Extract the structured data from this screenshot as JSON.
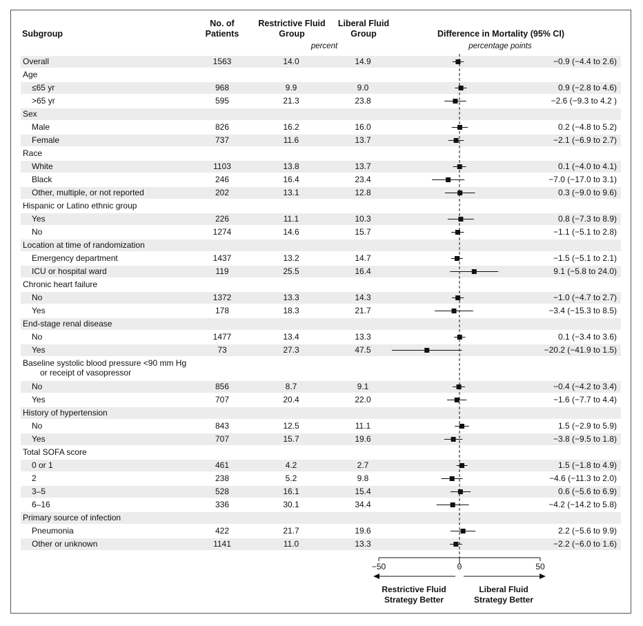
{
  "headers": {
    "subgroup": "Subgroup",
    "patients": "No. of Patients",
    "restrictive": "Restrictive Fluid Group",
    "liberal": "Liberal Fluid Group",
    "difference": "Difference in Mortality (95% CI)",
    "percent": "percent",
    "points": "percentage points"
  },
  "footer": {
    "left": "Restrictive Fluid Strategy Better",
    "right": "Liberal Fluid Strategy Better"
  },
  "chart_data": {
    "type": "forest",
    "xlim": [
      -50,
      50
    ],
    "xticks": [
      "−50",
      "0",
      "50"
    ],
    "reference_line": 0,
    "rows": [
      {
        "kind": "data",
        "label": "Overall",
        "indent": false,
        "n": "1563",
        "restrictive": "14.0",
        "liberal": "14.9",
        "ci_text": "−0.9 (−4.4 to 2.6)",
        "est": -0.9,
        "lo": -4.4,
        "hi": 2.6
      },
      {
        "kind": "cat",
        "label": "Age"
      },
      {
        "kind": "data",
        "label": "≤65 yr",
        "indent": true,
        "n": "968",
        "restrictive": "9.9",
        "liberal": "9.0",
        "ci_text": "0.9 (−2.8 to 4.6)",
        "est": 0.9,
        "lo": -2.8,
        "hi": 4.6
      },
      {
        "kind": "data",
        "label": ">65 yr",
        "indent": true,
        "n": "595",
        "restrictive": "21.3",
        "liberal": "23.8",
        "ci_text": "−2.6 (−9.3 to 4.2 )",
        "est": -2.6,
        "lo": -9.3,
        "hi": 4.2
      },
      {
        "kind": "cat",
        "label": "Sex"
      },
      {
        "kind": "data",
        "label": "Male",
        "indent": true,
        "n": "826",
        "restrictive": "16.2",
        "liberal": "16.0",
        "ci_text": "0.2 (−4.8 to 5.2)",
        "est": 0.2,
        "lo": -4.8,
        "hi": 5.2
      },
      {
        "kind": "data",
        "label": "Female",
        "indent": true,
        "n": "737",
        "restrictive": "11.6",
        "liberal": "13.7",
        "ci_text": "−2.1 (−6.9 to 2.7)",
        "est": -2.1,
        "lo": -6.9,
        "hi": 2.7
      },
      {
        "kind": "cat",
        "label": "Race"
      },
      {
        "kind": "data",
        "label": "White",
        "indent": true,
        "n": "1103",
        "restrictive": "13.8",
        "liberal": "13.7",
        "ci_text": "0.1 (−4.0 to 4.1)",
        "est": 0.1,
        "lo": -4.0,
        "hi": 4.1
      },
      {
        "kind": "data",
        "label": "Black",
        "indent": true,
        "n": "246",
        "restrictive": "16.4",
        "liberal": "23.4",
        "ci_text": "−7.0 (−17.0 to 3.1)",
        "est": -7.0,
        "lo": -17.0,
        "hi": 3.1
      },
      {
        "kind": "data",
        "label": "Other, multiple, or not reported",
        "indent": true,
        "n": "202",
        "restrictive": "13.1",
        "liberal": "12.8",
        "ci_text": "0.3 (−9.0 to 9.6)",
        "est": 0.3,
        "lo": -9.0,
        "hi": 9.6
      },
      {
        "kind": "cat",
        "label": "Hispanic or Latino ethnic group"
      },
      {
        "kind": "data",
        "label": "Yes",
        "indent": true,
        "n": "226",
        "restrictive": "11.1",
        "liberal": "10.3",
        "ci_text": "0.8 (−7.3 to 8.9)",
        "est": 0.8,
        "lo": -7.3,
        "hi": 8.9
      },
      {
        "kind": "data",
        "label": "No",
        "indent": true,
        "n": "1274",
        "restrictive": "14.6",
        "liberal": "15.7",
        "ci_text": "−1.1 (−5.1 to 2.8)",
        "est": -1.1,
        "lo": -5.1,
        "hi": 2.8
      },
      {
        "kind": "cat",
        "label": "Location at time of randomization"
      },
      {
        "kind": "data",
        "label": "Emergency department",
        "indent": true,
        "n": "1437",
        "restrictive": "13.2",
        "liberal": "14.7",
        "ci_text": "−1.5 (−5.1 to 2.1)",
        "est": -1.5,
        "lo": -5.1,
        "hi": 2.1
      },
      {
        "kind": "data",
        "label": "ICU or hospital ward",
        "indent": true,
        "n": "119",
        "restrictive": "25.5",
        "liberal": "16.4",
        "ci_text": "9.1 (−5.8 to 24.0)",
        "est": 9.1,
        "lo": -5.8,
        "hi": 24.0
      },
      {
        "kind": "cat",
        "label": "Chronic heart failure"
      },
      {
        "kind": "data",
        "label": "No",
        "indent": true,
        "n": "1372",
        "restrictive": "13.3",
        "liberal": "14.3",
        "ci_text": "−1.0 (−4.7 to 2.7)",
        "est": -1.0,
        "lo": -4.7,
        "hi": 2.7
      },
      {
        "kind": "data",
        "label": "Yes",
        "indent": true,
        "n": "178",
        "restrictive": "18.3",
        "liberal": "21.7",
        "ci_text": "−3.4 (−15.3 to 8.5)",
        "est": -3.4,
        "lo": -15.3,
        "hi": 8.5
      },
      {
        "kind": "cat",
        "label": "End-stage renal disease"
      },
      {
        "kind": "data",
        "label": "No",
        "indent": true,
        "n": "1477",
        "restrictive": "13.4",
        "liberal": "13.3",
        "ci_text": "0.1 (−3.4 to 3.6)",
        "est": 0.1,
        "lo": -3.4,
        "hi": 3.6
      },
      {
        "kind": "data",
        "label": "Yes",
        "indent": true,
        "n": "73",
        "restrictive": "27.3",
        "liberal": "47.5",
        "ci_text": "−20.2 (−41.9 to 1.5)",
        "est": -20.2,
        "lo": -41.9,
        "hi": 1.5
      },
      {
        "kind": "cat2",
        "label": "Baseline systolic blood pressure <90 mm Hg",
        "label2": "or receipt of vasopressor"
      },
      {
        "kind": "data",
        "label": "No",
        "indent": true,
        "n": "856",
        "restrictive": "8.7",
        "liberal": "9.1",
        "ci_text": "−0.4 (−4.2 to 3.4)",
        "est": -0.4,
        "lo": -4.2,
        "hi": 3.4
      },
      {
        "kind": "data",
        "label": "Yes",
        "indent": true,
        "n": "707",
        "restrictive": "20.4",
        "liberal": "22.0",
        "ci_text": "−1.6 (−7.7 to 4.4)",
        "est": -1.6,
        "lo": -7.7,
        "hi": 4.4
      },
      {
        "kind": "cat",
        "label": "History of hypertension"
      },
      {
        "kind": "data",
        "label": "No",
        "indent": true,
        "n": "843",
        "restrictive": "12.5",
        "liberal": "11.1",
        "ci_text": "1.5 (−2.9 to 5.9)",
        "est": 1.5,
        "lo": -2.9,
        "hi": 5.9
      },
      {
        "kind": "data",
        "label": "Yes",
        "indent": true,
        "n": "707",
        "restrictive": "15.7",
        "liberal": "19.6",
        "ci_text": "−3.8 (−9.5 to 1.8)",
        "est": -3.8,
        "lo": -9.5,
        "hi": 1.8
      },
      {
        "kind": "cat",
        "label": "Total SOFA score"
      },
      {
        "kind": "data",
        "label": "0 or 1",
        "indent": true,
        "n": "461",
        "restrictive": "4.2",
        "liberal": "2.7",
        "ci_text": "1.5 (−1.8 to 4.9)",
        "est": 1.5,
        "lo": -1.8,
        "hi": 4.9
      },
      {
        "kind": "data",
        "label": "2",
        "indent": true,
        "n": "238",
        "restrictive": "5.2",
        "liberal": "9.8",
        "ci_text": "−4.6 (−11.3 to 2.0)",
        "est": -4.6,
        "lo": -11.3,
        "hi": 2.0
      },
      {
        "kind": "data",
        "label": "3–5",
        "indent": true,
        "n": "528",
        "restrictive": "16.1",
        "liberal": "15.4",
        "ci_text": "0.6 (−5.6 to 6.9)",
        "est": 0.6,
        "lo": -5.6,
        "hi": 6.9
      },
      {
        "kind": "data",
        "label": "6–16",
        "indent": true,
        "n": "336",
        "restrictive": "30.1",
        "liberal": "34.4",
        "ci_text": "−4.2 (−14.2 to 5.8)",
        "est": -4.2,
        "lo": -14.2,
        "hi": 5.8
      },
      {
        "kind": "cat",
        "label": "Primary source of infection"
      },
      {
        "kind": "data",
        "label": "Pneumonia",
        "indent": true,
        "n": "422",
        "restrictive": "21.7",
        "liberal": "19.6",
        "ci_text": "2.2 (−5.6 to 9.9)",
        "est": 2.2,
        "lo": -5.6,
        "hi": 9.9
      },
      {
        "kind": "data",
        "label": "Other or unknown",
        "indent": true,
        "n": "1141",
        "restrictive": "11.0",
        "liberal": "13.3",
        "ci_text": "−2.2 (−6.0 to 1.6)",
        "est": -2.2,
        "lo": -6.0,
        "hi": 1.6
      }
    ]
  }
}
